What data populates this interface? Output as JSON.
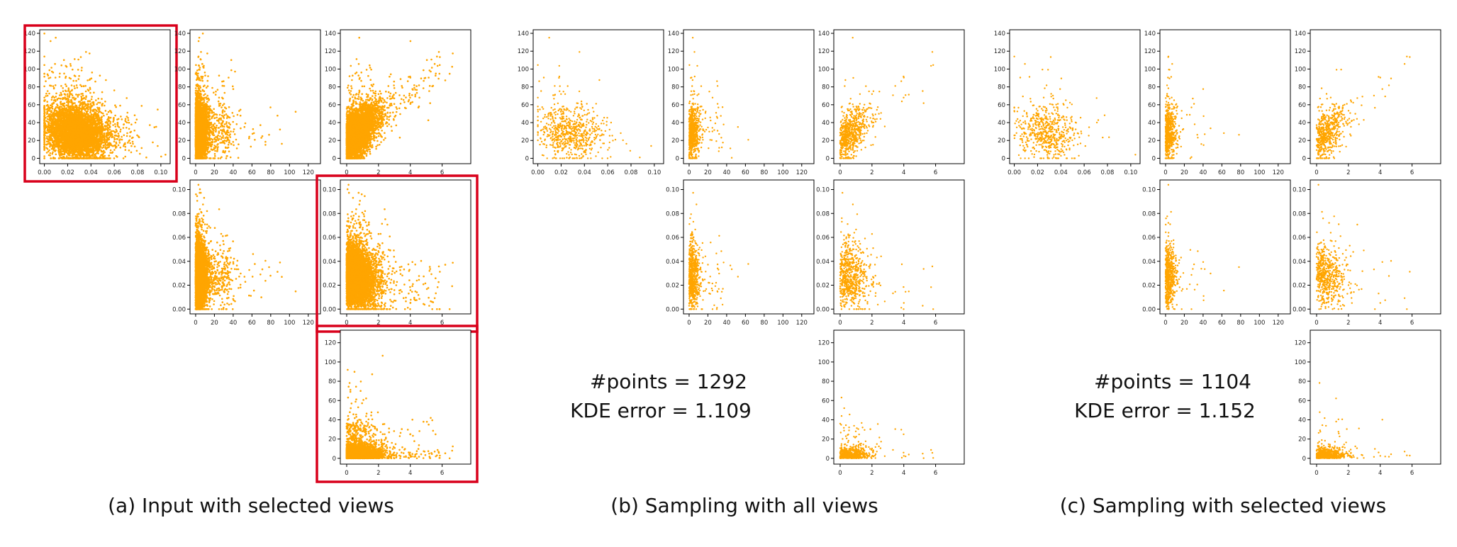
{
  "colors": {
    "points": "#FFA500",
    "highlight": "#D9001B",
    "axis": "#000000"
  },
  "captions": [
    "(a) Input with selected views",
    "(b) Sampling with all views",
    "(c) Sampling with selected views"
  ],
  "stats": {
    "b": {
      "points_label": "#points = 1292",
      "error_label": "KDE error = 1.109"
    },
    "c": {
      "points_label": "#points = 1104",
      "error_label": "KDE error = 1.152"
    }
  },
  "chart_data": [
    {
      "type": "scatter",
      "group": "a",
      "row": 0,
      "col": 0,
      "selected": true,
      "density": 1.0,
      "x_dim": "density",
      "y_dim": "vol",
      "xlim": [
        -0.004,
        0.108
      ],
      "ylim": [
        -6,
        144
      ],
      "xticks": [
        "0.00",
        "0.02",
        "0.04",
        "0.06",
        "0.08",
        "0.10"
      ],
      "yticks": [
        "0",
        "20",
        "40",
        "60",
        "80",
        "100",
        "120",
        "140"
      ]
    },
    {
      "type": "scatter",
      "group": "a",
      "row": 0,
      "col": 1,
      "selected": false,
      "density": 1.0,
      "x_dim": "count",
      "y_dim": "vol",
      "xlim": [
        -6,
        133
      ],
      "ylim": [
        -6,
        144
      ],
      "xticks": [
        "0",
        "20",
        "40",
        "60",
        "80",
        "100",
        "120"
      ],
      "yticks": [
        "0",
        "20",
        "40",
        "60",
        "80",
        "100",
        "120",
        "140"
      ]
    },
    {
      "type": "scatter",
      "group": "a",
      "row": 0,
      "col": 2,
      "selected": false,
      "density": 1.0,
      "x_dim": "ratio",
      "y_dim": "vol",
      "xlim": [
        -0.4,
        7.8
      ],
      "ylim": [
        -6,
        144
      ],
      "xticks": [
        "0",
        "2",
        "4",
        "6"
      ],
      "yticks": [
        "0",
        "20",
        "40",
        "60",
        "80",
        "100",
        "120",
        "140"
      ]
    },
    {
      "type": "scatter",
      "group": "a",
      "row": 1,
      "col": 1,
      "selected": false,
      "density": 1.0,
      "x_dim": "count",
      "y_dim": "density",
      "xlim": [
        -6,
        133
      ],
      "ylim": [
        -0.004,
        0.108
      ],
      "xticks": [
        "0",
        "20",
        "40",
        "60",
        "80",
        "100",
        "120"
      ],
      "yticks": [
        "0.00",
        "0.02",
        "0.04",
        "0.06",
        "0.08",
        "0.10"
      ]
    },
    {
      "type": "scatter",
      "group": "a",
      "row": 1,
      "col": 2,
      "selected": true,
      "density": 1.0,
      "x_dim": "ratio",
      "y_dim": "density",
      "xlim": [
        -0.4,
        7.8
      ],
      "ylim": [
        -0.004,
        0.108
      ],
      "xticks": [
        "0",
        "2",
        "4",
        "6"
      ],
      "yticks": [
        "0.00",
        "0.02",
        "0.04",
        "0.06",
        "0.08",
        "0.10"
      ]
    },
    {
      "type": "scatter",
      "group": "a",
      "row": 2,
      "col": 2,
      "selected": true,
      "density": 1.0,
      "x_dim": "ratio",
      "y_dim": "count",
      "xlim": [
        -0.4,
        7.8
      ],
      "ylim": [
        -6,
        133
      ],
      "xticks": [
        "0",
        "2",
        "4",
        "6"
      ],
      "yticks": [
        "0",
        "20",
        "40",
        "60",
        "80",
        "100",
        "120"
      ]
    },
    {
      "type": "scatter",
      "group": "b",
      "row": 0,
      "col": 0,
      "selected": false,
      "density": 0.13,
      "x_dim": "density",
      "y_dim": "vol",
      "xlim": [
        -0.004,
        0.108
      ],
      "ylim": [
        -6,
        144
      ],
      "xticks": [
        "0.00",
        "0.02",
        "0.04",
        "0.06",
        "0.08",
        "0.10"
      ],
      "yticks": [
        "0",
        "20",
        "40",
        "60",
        "80",
        "100",
        "120",
        "140"
      ]
    },
    {
      "type": "scatter",
      "group": "b",
      "row": 0,
      "col": 1,
      "selected": false,
      "density": 0.13,
      "x_dim": "count",
      "y_dim": "vol",
      "xlim": [
        -6,
        133
      ],
      "ylim": [
        -6,
        144
      ],
      "xticks": [
        "0",
        "20",
        "40",
        "60",
        "80",
        "100",
        "120"
      ],
      "yticks": [
        "0",
        "20",
        "40",
        "60",
        "80",
        "100",
        "120",
        "140"
      ]
    },
    {
      "type": "scatter",
      "group": "b",
      "row": 0,
      "col": 2,
      "selected": false,
      "density": 0.13,
      "x_dim": "ratio",
      "y_dim": "vol",
      "xlim": [
        -0.4,
        7.8
      ],
      "ylim": [
        -6,
        144
      ],
      "xticks": [
        "0",
        "2",
        "4",
        "6"
      ],
      "yticks": [
        "0",
        "20",
        "40",
        "60",
        "80",
        "100",
        "120",
        "140"
      ]
    },
    {
      "type": "scatter",
      "group": "b",
      "row": 1,
      "col": 1,
      "selected": false,
      "density": 0.13,
      "x_dim": "count",
      "y_dim": "density",
      "xlim": [
        -6,
        133
      ],
      "ylim": [
        -0.004,
        0.108
      ],
      "xticks": [
        "0",
        "20",
        "40",
        "60",
        "80",
        "100",
        "120"
      ],
      "yticks": [
        "0.00",
        "0.02",
        "0.04",
        "0.06",
        "0.08",
        "0.10"
      ]
    },
    {
      "type": "scatter",
      "group": "b",
      "row": 1,
      "col": 2,
      "selected": false,
      "density": 0.13,
      "x_dim": "ratio",
      "y_dim": "density",
      "xlim": [
        -0.4,
        7.8
      ],
      "ylim": [
        -0.004,
        0.108
      ],
      "xticks": [
        "0",
        "2",
        "4",
        "6"
      ],
      "yticks": [
        "0.00",
        "0.02",
        "0.04",
        "0.06",
        "0.08",
        "0.10"
      ]
    },
    {
      "type": "scatter",
      "group": "b",
      "row": 2,
      "col": 2,
      "selected": false,
      "density": 0.13,
      "x_dim": "ratio",
      "y_dim": "count",
      "xlim": [
        -0.4,
        7.8
      ],
      "ylim": [
        -6,
        133
      ],
      "xticks": [
        "0",
        "2",
        "4",
        "6"
      ],
      "yticks": [
        "0",
        "20",
        "40",
        "60",
        "80",
        "100",
        "120"
      ]
    },
    {
      "type": "scatter",
      "group": "c",
      "row": 0,
      "col": 0,
      "selected": false,
      "density": 0.11,
      "x_dim": "density",
      "y_dim": "vol",
      "xlim": [
        -0.004,
        0.108
      ],
      "ylim": [
        -6,
        144
      ],
      "xticks": [
        "0.00",
        "0.02",
        "0.04",
        "0.06",
        "0.08",
        "0.10"
      ],
      "yticks": [
        "0",
        "20",
        "40",
        "60",
        "80",
        "100",
        "120",
        "140"
      ]
    },
    {
      "type": "scatter",
      "group": "c",
      "row": 0,
      "col": 1,
      "selected": false,
      "density": 0.11,
      "x_dim": "count",
      "y_dim": "vol",
      "xlim": [
        -6,
        133
      ],
      "ylim": [
        -6,
        144
      ],
      "xticks": [
        "0",
        "20",
        "40",
        "60",
        "80",
        "100",
        "120"
      ],
      "yticks": [
        "0",
        "20",
        "40",
        "60",
        "80",
        "100",
        "120",
        "140"
      ]
    },
    {
      "type": "scatter",
      "group": "c",
      "row": 0,
      "col": 2,
      "selected": false,
      "density": 0.11,
      "x_dim": "ratio",
      "y_dim": "vol",
      "xlim": [
        -0.4,
        7.8
      ],
      "ylim": [
        -6,
        144
      ],
      "xticks": [
        "0",
        "2",
        "4",
        "6"
      ],
      "yticks": [
        "0",
        "20",
        "40",
        "60",
        "80",
        "100",
        "120",
        "140"
      ]
    },
    {
      "type": "scatter",
      "group": "c",
      "row": 1,
      "col": 1,
      "selected": false,
      "density": 0.11,
      "x_dim": "count",
      "y_dim": "density",
      "xlim": [
        -6,
        133
      ],
      "ylim": [
        -0.004,
        0.108
      ],
      "xticks": [
        "0",
        "20",
        "40",
        "60",
        "80",
        "100",
        "120"
      ],
      "yticks": [
        "0.00",
        "0.02",
        "0.04",
        "0.06",
        "0.08",
        "0.10"
      ]
    },
    {
      "type": "scatter",
      "group": "c",
      "row": 1,
      "col": 2,
      "selected": false,
      "density": 0.11,
      "x_dim": "ratio",
      "y_dim": "density",
      "xlim": [
        -0.4,
        7.8
      ],
      "ylim": [
        -0.004,
        0.108
      ],
      "xticks": [
        "0",
        "2",
        "4",
        "6"
      ],
      "yticks": [
        "0.00",
        "0.02",
        "0.04",
        "0.06",
        "0.08",
        "0.10"
      ]
    },
    {
      "type": "scatter",
      "group": "c",
      "row": 2,
      "col": 2,
      "selected": false,
      "density": 0.11,
      "x_dim": "ratio",
      "y_dim": "count",
      "xlim": [
        -0.4,
        7.8
      ],
      "ylim": [
        -6,
        133
      ],
      "xticks": [
        "0",
        "2",
        "4",
        "6"
      ],
      "yticks": [
        "0",
        "20",
        "40",
        "60",
        "80",
        "100",
        "120"
      ]
    }
  ]
}
